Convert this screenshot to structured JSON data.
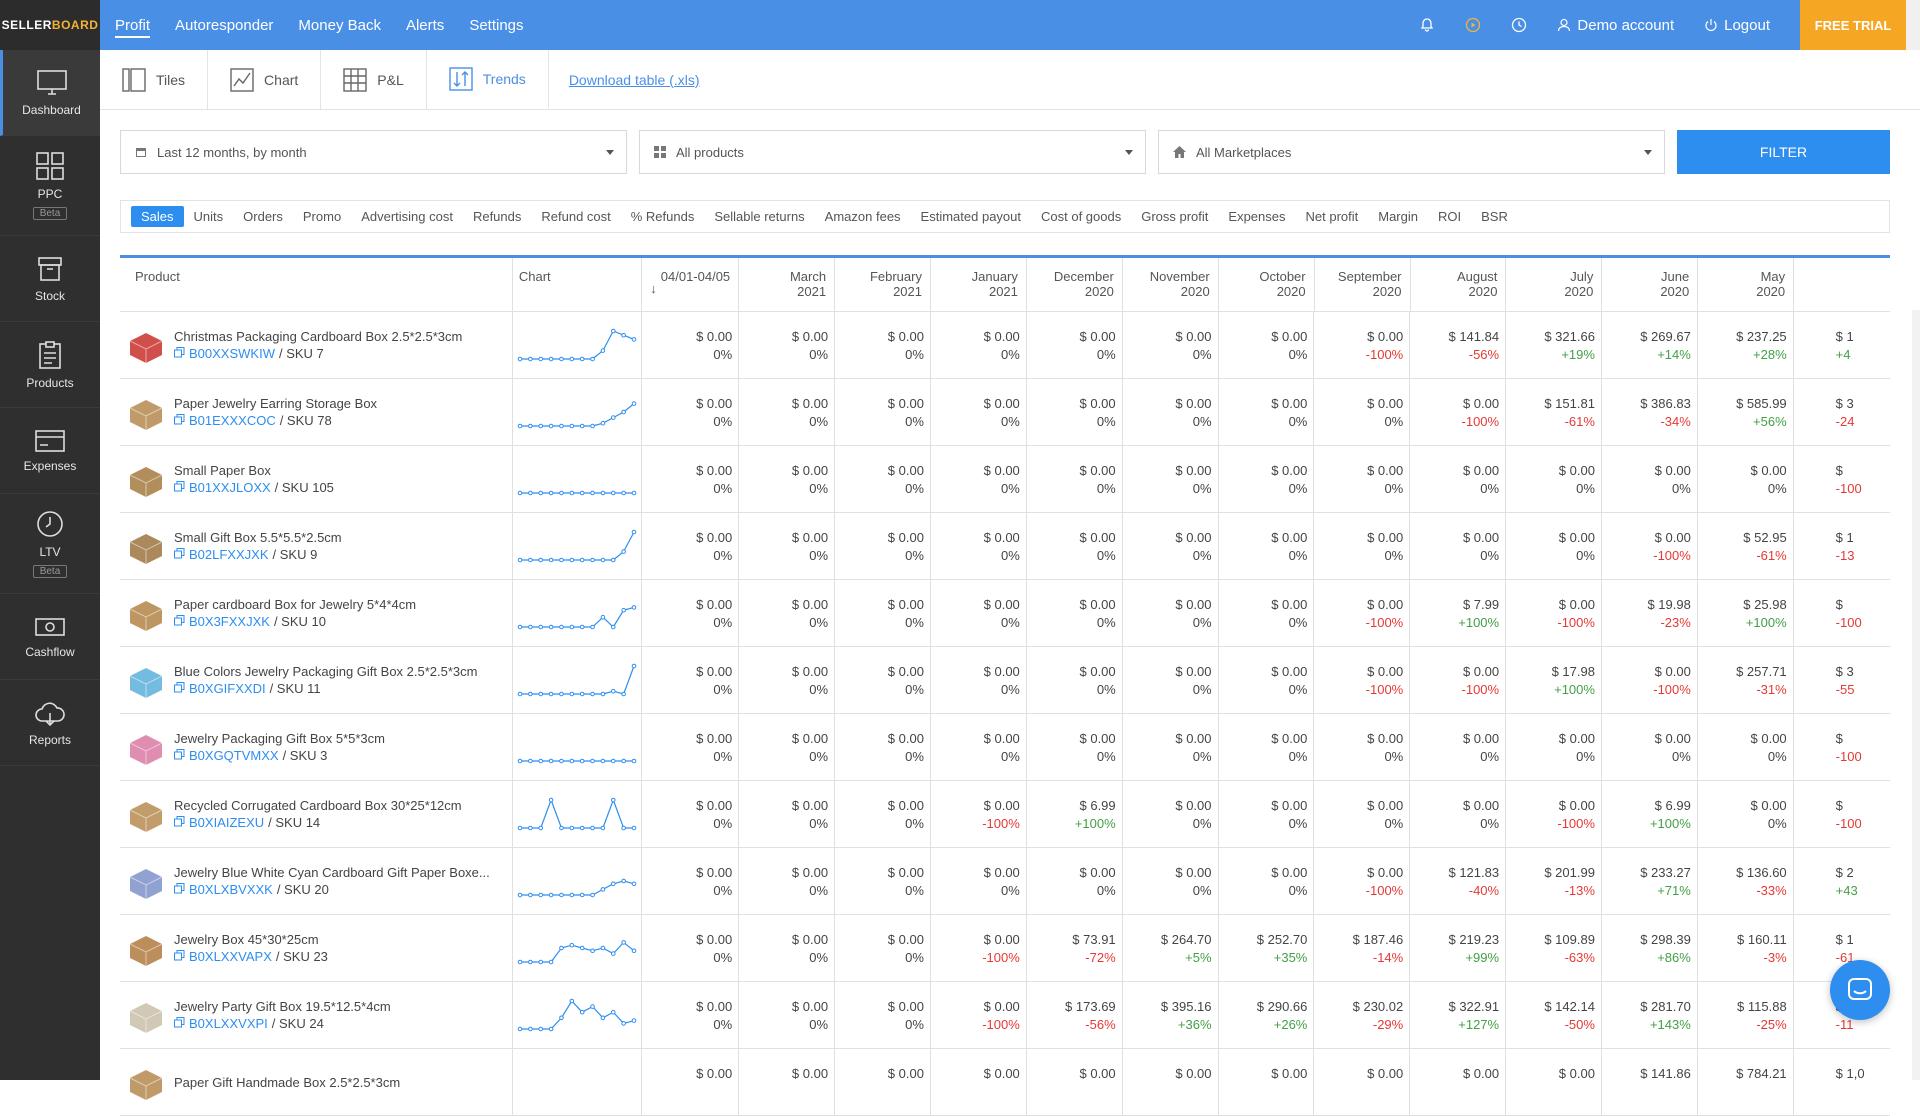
{
  "brand": {
    "logo_part1": "SELLER",
    "logo_part2": "BOARD"
  },
  "topnav": {
    "items": [
      {
        "label": "Profit",
        "active": true
      },
      {
        "label": "Autoresponder"
      },
      {
        "label": "Money Back"
      },
      {
        "label": "Alerts"
      },
      {
        "label": "Settings"
      }
    ],
    "demo_account": "Demo account",
    "logout": "Logout",
    "free_trial": "FREE TRIAL"
  },
  "sidebar": {
    "items": [
      {
        "label": "Dashboard",
        "icon": "monitor-icon",
        "active": true
      },
      {
        "label": "PPC",
        "icon": "grid-icon",
        "badge": "Beta"
      },
      {
        "label": "Stock",
        "icon": "box-icon"
      },
      {
        "label": "Products",
        "icon": "clipboard-icon"
      },
      {
        "label": "Expenses",
        "icon": "card-icon"
      },
      {
        "label": "LTV",
        "icon": "clock-icon",
        "badge": "Beta"
      },
      {
        "label": "Cashflow",
        "icon": "cash-icon"
      },
      {
        "label": "Reports",
        "icon": "cloud-icon"
      }
    ]
  },
  "viewtabs": {
    "tiles": "Tiles",
    "chart": "Chart",
    "pl": "P&L",
    "trends": "Trends",
    "download": "Download table (.xls)"
  },
  "filters": {
    "period": "Last 12 months, by month",
    "products": "All products",
    "marketplaces": "All Marketplaces",
    "button": "FILTER"
  },
  "metrics": [
    "Sales",
    "Units",
    "Orders",
    "Promo",
    "Advertising cost",
    "Refunds",
    "Refund cost",
    "% Refunds",
    "Sellable returns",
    "Amazon fees",
    "Estimated payout",
    "Cost of goods",
    "Gross profit",
    "Expenses",
    "Net profit",
    "Margin",
    "ROI",
    "BSR"
  ],
  "table": {
    "product_header": "Product",
    "chart_header": "Chart",
    "columns": [
      {
        "l1": "04/01-04/05",
        "l2": ""
      },
      {
        "l1": "March",
        "l2": "2021"
      },
      {
        "l1": "February",
        "l2": "2021"
      },
      {
        "l1": "January",
        "l2": "2021"
      },
      {
        "l1": "December",
        "l2": "2020"
      },
      {
        "l1": "November",
        "l2": "2020"
      },
      {
        "l1": "October",
        "l2": "2020"
      },
      {
        "l1": "September",
        "l2": "2020"
      },
      {
        "l1": "August",
        "l2": "2020"
      },
      {
        "l1": "July",
        "l2": "2020"
      },
      {
        "l1": "June",
        "l2": "2020"
      },
      {
        "l1": "May",
        "l2": "2020"
      },
      {
        "l1": "",
        "l2": ""
      }
    ],
    "rows": [
      {
        "name": "Christmas Packaging Cardboard Box 2.5*2.5*3cm",
        "asin": "B00XXSWKIW",
        "sku": " / SKU 7",
        "thumb": "#c9302c",
        "spark": [
          0,
          0,
          0,
          0,
          0,
          0,
          0,
          0,
          0.3,
          1,
          0.85,
          0.7
        ],
        "cells": [
          [
            "$ 0.00",
            "0%"
          ],
          [
            "$ 0.00",
            "0%"
          ],
          [
            "$ 0.00",
            "0%"
          ],
          [
            "$ 0.00",
            "0%"
          ],
          [
            "$ 0.00",
            "0%"
          ],
          [
            "$ 0.00",
            "0%"
          ],
          [
            "$ 0.00",
            "0%"
          ],
          [
            "$ 0.00",
            "-100%"
          ],
          [
            "$ 141.84",
            "-56%"
          ],
          [
            "$ 321.66",
            "+19%"
          ],
          [
            "$ 269.67",
            "+14%"
          ],
          [
            "$ 237.25",
            "+28%"
          ],
          [
            "$ 1",
            "+4"
          ]
        ]
      },
      {
        "name": "Paper Jewelry Earring Storage Box",
        "asin": "B01EXXXCOC",
        "sku": " / SKU 78",
        "thumb": "#b58a4f",
        "spark": [
          0,
          0,
          0,
          0,
          0,
          0,
          0,
          0,
          0.1,
          0.3,
          0.5,
          0.8
        ],
        "cells": [
          [
            "$ 0.00",
            "0%"
          ],
          [
            "$ 0.00",
            "0%"
          ],
          [
            "$ 0.00",
            "0%"
          ],
          [
            "$ 0.00",
            "0%"
          ],
          [
            "$ 0.00",
            "0%"
          ],
          [
            "$ 0.00",
            "0%"
          ],
          [
            "$ 0.00",
            "0%"
          ],
          [
            "$ 0.00",
            "0%"
          ],
          [
            "$ 0.00",
            "-100%"
          ],
          [
            "$ 151.81",
            "-61%"
          ],
          [
            "$ 386.83",
            "-34%"
          ],
          [
            "$ 585.99",
            "+56%"
          ],
          [
            "$ 3",
            "-24"
          ]
        ]
      },
      {
        "name": "Small Paper Box",
        "asin": "B01XXJLOXX",
        "sku": " / SKU 105",
        "thumb": "#a57a3f",
        "spark": [
          0,
          0,
          0,
          0,
          0,
          0,
          0,
          0,
          0,
          0,
          0,
          0
        ],
        "cells": [
          [
            "$ 0.00",
            "0%"
          ],
          [
            "$ 0.00",
            "0%"
          ],
          [
            "$ 0.00",
            "0%"
          ],
          [
            "$ 0.00",
            "0%"
          ],
          [
            "$ 0.00",
            "0%"
          ],
          [
            "$ 0.00",
            "0%"
          ],
          [
            "$ 0.00",
            "0%"
          ],
          [
            "$ 0.00",
            "0%"
          ],
          [
            "$ 0.00",
            "0%"
          ],
          [
            "$ 0.00",
            "0%"
          ],
          [
            "$ 0.00",
            "0%"
          ],
          [
            "$ 0.00",
            "0%"
          ],
          [
            "$",
            "-100"
          ]
        ]
      },
      {
        "name": "Small Gift Box 5.5*5.5*2.5cm",
        "asin": "B02LFXXJXK",
        "sku": " / SKU 9",
        "thumb": "#9c7440",
        "spark": [
          0,
          0,
          0,
          0,
          0,
          0,
          0,
          0,
          0,
          0,
          0.3,
          1
        ],
        "cells": [
          [
            "$ 0.00",
            "0%"
          ],
          [
            "$ 0.00",
            "0%"
          ],
          [
            "$ 0.00",
            "0%"
          ],
          [
            "$ 0.00",
            "0%"
          ],
          [
            "$ 0.00",
            "0%"
          ],
          [
            "$ 0.00",
            "0%"
          ],
          [
            "$ 0.00",
            "0%"
          ],
          [
            "$ 0.00",
            "0%"
          ],
          [
            "$ 0.00",
            "0%"
          ],
          [
            "$ 0.00",
            "0%"
          ],
          [
            "$ 0.00",
            "-100%"
          ],
          [
            "$ 52.95",
            "-61%"
          ],
          [
            "$ 1",
            "-13"
          ]
        ]
      },
      {
        "name": "Paper cardboard Box for Jewelry 5*4*4cm",
        "asin": "B0X3FXXJXK",
        "sku": " / SKU 10",
        "thumb": "#b38447",
        "spark": [
          0,
          0,
          0,
          0,
          0,
          0,
          0,
          0,
          0.35,
          0,
          0.6,
          0.7
        ],
        "cells": [
          [
            "$ 0.00",
            "0%"
          ],
          [
            "$ 0.00",
            "0%"
          ],
          [
            "$ 0.00",
            "0%"
          ],
          [
            "$ 0.00",
            "0%"
          ],
          [
            "$ 0.00",
            "0%"
          ],
          [
            "$ 0.00",
            "0%"
          ],
          [
            "$ 0.00",
            "0%"
          ],
          [
            "$ 0.00",
            "-100%"
          ],
          [
            "$ 7.99",
            "+100%"
          ],
          [
            "$ 0.00",
            "-100%"
          ],
          [
            "$ 19.98",
            "-23%"
          ],
          [
            "$ 25.98",
            "+100%"
          ],
          [
            "$",
            "-100"
          ]
        ]
      },
      {
        "name": "Blue Colors Jewelry Packaging Gift Box 2.5*2.5*3cm",
        "asin": "B0XGIFXXDI",
        "sku": " / SKU 11",
        "thumb": "#5bb0d9",
        "spark": [
          0,
          0,
          0,
          0,
          0,
          0,
          0,
          0,
          0,
          0.1,
          0,
          1
        ],
        "cells": [
          [
            "$ 0.00",
            "0%"
          ],
          [
            "$ 0.00",
            "0%"
          ],
          [
            "$ 0.00",
            "0%"
          ],
          [
            "$ 0.00",
            "0%"
          ],
          [
            "$ 0.00",
            "0%"
          ],
          [
            "$ 0.00",
            "0%"
          ],
          [
            "$ 0.00",
            "0%"
          ],
          [
            "$ 0.00",
            "-100%"
          ],
          [
            "$ 0.00",
            "-100%"
          ],
          [
            "$ 17.98",
            "+100%"
          ],
          [
            "$ 0.00",
            "-100%"
          ],
          [
            "$ 257.71",
            "-31%"
          ],
          [
            "$ 3",
            "-55"
          ]
        ]
      },
      {
        "name": "Jewelry Packaging Gift Box 5*5*3cm",
        "asin": "B0XGQTVMXX",
        "sku": " / SKU 3",
        "thumb": "#d97aa3",
        "spark": [
          0,
          0,
          0,
          0,
          0,
          0,
          0,
          0,
          0,
          0,
          0,
          0
        ],
        "cells": [
          [
            "$ 0.00",
            "0%"
          ],
          [
            "$ 0.00",
            "0%"
          ],
          [
            "$ 0.00",
            "0%"
          ],
          [
            "$ 0.00",
            "0%"
          ],
          [
            "$ 0.00",
            "0%"
          ],
          [
            "$ 0.00",
            "0%"
          ],
          [
            "$ 0.00",
            "0%"
          ],
          [
            "$ 0.00",
            "0%"
          ],
          [
            "$ 0.00",
            "0%"
          ],
          [
            "$ 0.00",
            "0%"
          ],
          [
            "$ 0.00",
            "0%"
          ],
          [
            "$ 0.00",
            "0%"
          ],
          [
            "$",
            "-100"
          ]
        ]
      },
      {
        "name": "Recycled Corrugated Cardboard Box 30*25*12cm",
        "asin": "B0XIAIZEXU",
        "sku": " / SKU 14",
        "thumb": "#b98b52",
        "spark": [
          0,
          0,
          0,
          1,
          0,
          0,
          0,
          0,
          0,
          1,
          0,
          0
        ],
        "cells": [
          [
            "$ 0.00",
            "0%"
          ],
          [
            "$ 0.00",
            "0%"
          ],
          [
            "$ 0.00",
            "0%"
          ],
          [
            "$ 0.00",
            "-100%"
          ],
          [
            "$ 6.99",
            "+100%"
          ],
          [
            "$ 0.00",
            "0%"
          ],
          [
            "$ 0.00",
            "0%"
          ],
          [
            "$ 0.00",
            "0%"
          ],
          [
            "$ 0.00",
            "0%"
          ],
          [
            "$ 0.00",
            "-100%"
          ],
          [
            "$ 6.99",
            "+100%"
          ],
          [
            "$ 0.00",
            "0%"
          ],
          [
            "$",
            "-100"
          ]
        ]
      },
      {
        "name": "Jewelry Blue White Cyan Cardboard Gift Paper Boxe...",
        "asin": "B0XLXBVXXK",
        "sku": " / SKU 20",
        "thumb": "#7e91c9",
        "spark": [
          0,
          0,
          0,
          0,
          0,
          0,
          0,
          0,
          0.2,
          0.4,
          0.5,
          0.4
        ],
        "cells": [
          [
            "$ 0.00",
            "0%"
          ],
          [
            "$ 0.00",
            "0%"
          ],
          [
            "$ 0.00",
            "0%"
          ],
          [
            "$ 0.00",
            "0%"
          ],
          [
            "$ 0.00",
            "0%"
          ],
          [
            "$ 0.00",
            "0%"
          ],
          [
            "$ 0.00",
            "0%"
          ],
          [
            "$ 0.00",
            "-100%"
          ],
          [
            "$ 121.83",
            "-40%"
          ],
          [
            "$ 201.99",
            "-13%"
          ],
          [
            "$ 233.27",
            "+71%"
          ],
          [
            "$ 136.60",
            "-33%"
          ],
          [
            "$ 2",
            "+43"
          ]
        ]
      },
      {
        "name": "Jewelry Box 45*30*25cm",
        "asin": "B0XLXXVAPX",
        "sku": " / SKU 23",
        "thumb": "#b07a3e",
        "spark": [
          0,
          0,
          0,
          0,
          0.5,
          0.6,
          0.5,
          0.4,
          0.5,
          0.3,
          0.7,
          0.4
        ],
        "cells": [
          [
            "$ 0.00",
            "0%"
          ],
          [
            "$ 0.00",
            "0%"
          ],
          [
            "$ 0.00",
            "0%"
          ],
          [
            "$ 0.00",
            "-100%"
          ],
          [
            "$ 73.91",
            "-72%"
          ],
          [
            "$ 264.70",
            "+5%"
          ],
          [
            "$ 252.70",
            "+35%"
          ],
          [
            "$ 187.46",
            "-14%"
          ],
          [
            "$ 219.23",
            "+99%"
          ],
          [
            "$ 109.89",
            "-63%"
          ],
          [
            "$ 298.39",
            "+86%"
          ],
          [
            "$ 160.11",
            "-3%"
          ],
          [
            "$ 1",
            "-61"
          ]
        ]
      },
      {
        "name": "Jewelry Party Gift Box 19.5*12.5*4cm",
        "asin": "B0XLXXVXPI",
        "sku": " / SKU 24",
        "thumb": "#c9bfa8",
        "spark": [
          0,
          0,
          0,
          0,
          0.4,
          1,
          0.6,
          0.8,
          0.4,
          0.6,
          0.2,
          0.3
        ],
        "cells": [
          [
            "$ 0.00",
            "0%"
          ],
          [
            "$ 0.00",
            "0%"
          ],
          [
            "$ 0.00",
            "0%"
          ],
          [
            "$ 0.00",
            "-100%"
          ],
          [
            "$ 173.69",
            "-56%"
          ],
          [
            "$ 395.16",
            "+36%"
          ],
          [
            "$ 290.66",
            "+26%"
          ],
          [
            "$ 230.02",
            "-29%"
          ],
          [
            "$ 322.91",
            "+127%"
          ],
          [
            "$ 142.14",
            "-50%"
          ],
          [
            "$ 281.70",
            "+143%"
          ],
          [
            "$ 115.88",
            "-25%"
          ],
          [
            "$",
            "-11"
          ]
        ]
      },
      {
        "name": "Paper Gift Handmade Box 2.5*2.5*3cm",
        "asin": "",
        "sku": "",
        "thumb": "#b58a4f",
        "spark": [],
        "cells": [
          [
            "$ 0.00",
            ""
          ],
          [
            "$ 0.00",
            ""
          ],
          [
            "$ 0.00",
            ""
          ],
          [
            "$ 0.00",
            ""
          ],
          [
            "$ 0.00",
            ""
          ],
          [
            "$ 0.00",
            ""
          ],
          [
            "$ 0.00",
            ""
          ],
          [
            "$ 0.00",
            ""
          ],
          [
            "$ 0.00",
            ""
          ],
          [
            "$ 0.00",
            ""
          ],
          [
            "$ 141.86",
            ""
          ],
          [
            "$ 784.21",
            ""
          ],
          [
            "$ 1,0",
            ""
          ]
        ]
      }
    ]
  },
  "colors": {
    "accent": "#4a8fe6",
    "trial": "#f5a623",
    "positive": "#43a047",
    "negative": "#e53935",
    "sidebar": "#2f2f2f"
  }
}
